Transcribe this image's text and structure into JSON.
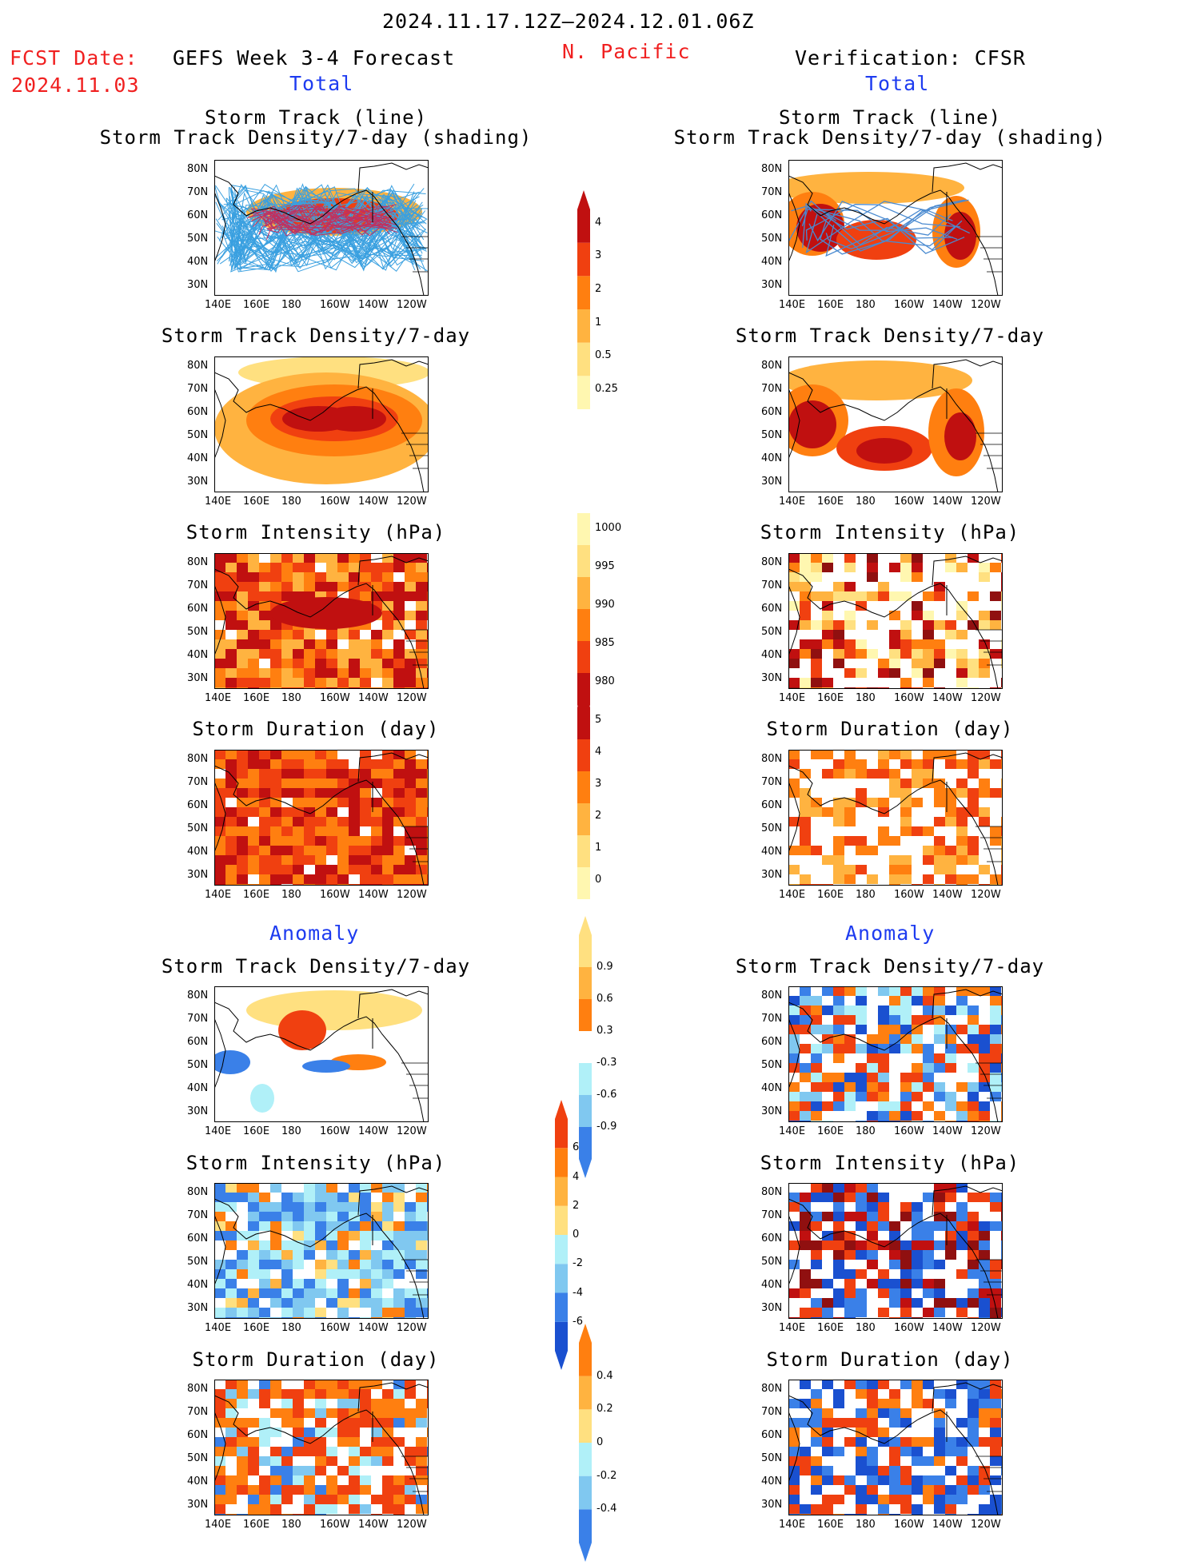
{
  "header": {
    "date_range": "2024.11.17.12Z–2024.12.01.06Z",
    "fcst_label": "FCST Date:",
    "fcst_date": "2024.11.03",
    "forecast_title": "GEFS Week 3-4 Forecast",
    "region": "N. Pacific",
    "verification_title": "Verification: CFSR"
  },
  "section_labels": {
    "total_left": "Total",
    "total_right": "Total",
    "anomaly_left": "Anomaly",
    "anomaly_right": "Anomaly"
  },
  "panel_titles": {
    "track_line": "Storm Track (line)",
    "track_density_shading": "Storm Track Density/7-day (shading)",
    "track_density": "Storm Track Density/7-day",
    "intensity": "Storm Intensity (hPa)",
    "duration": "Storm Duration (day)"
  },
  "axes": {
    "lat_ticks": [
      "80N",
      "70N",
      "60N",
      "50N",
      "40N",
      "30N"
    ],
    "lon_ticks": [
      "140E",
      "160E",
      "180",
      "160W",
      "140W",
      "120W"
    ]
  },
  "colorbars": {
    "density": [
      "4",
      "3",
      "2",
      "1",
      "0.5",
      "0.25"
    ],
    "intensity": [
      "1000",
      "995",
      "990",
      "985",
      "980"
    ],
    "duration": [
      "5",
      "4",
      "3",
      "2",
      "1",
      "0"
    ],
    "density_anom": [
      "0.9",
      "0.6",
      "0.3",
      "-0.3",
      "-0.6",
      "-0.9"
    ],
    "intensity_anom": [
      "6",
      "4",
      "2",
      "0",
      "-2",
      "-4",
      "-6"
    ],
    "duration_anom": [
      "0.4",
      "0.2",
      "0",
      "-0.2",
      "-0.4"
    ]
  },
  "colors": {
    "header_red": "#f02020",
    "label_blue": "#1e3cf0",
    "warm": [
      "#fff7b0",
      "#ffe080",
      "#ffb340",
      "#ff7f10",
      "#f04010",
      "#c01010",
      "#901010"
    ],
    "cool": [
      "#b0f0f8",
      "#80c8f0",
      "#3a80e8",
      "#1a50d0"
    ],
    "track_line": "#3aa0e0"
  }
}
